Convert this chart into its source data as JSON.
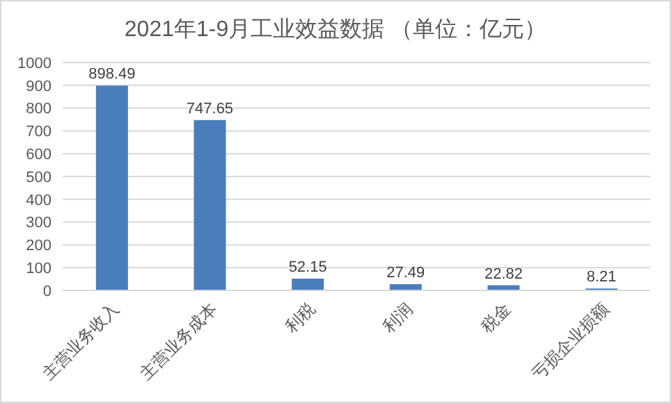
{
  "chart_data": {
    "type": "bar",
    "title": "2021年1-9月工业效益数据 （单位：亿元）",
    "categories": [
      "主营业务收入",
      "主营业务成本",
      "利税",
      "利润",
      "税金",
      "亏损企业损额"
    ],
    "values": [
      898.49,
      747.65,
      52.15,
      27.49,
      22.82,
      8.21
    ],
    "color": "#4a7ebb",
    "ylim": [
      0,
      1000
    ],
    "yticks": [
      0,
      100,
      200,
      300,
      400,
      500,
      600,
      700,
      800,
      900,
      1000
    ],
    "grid": "y",
    "data_labels": true
  }
}
